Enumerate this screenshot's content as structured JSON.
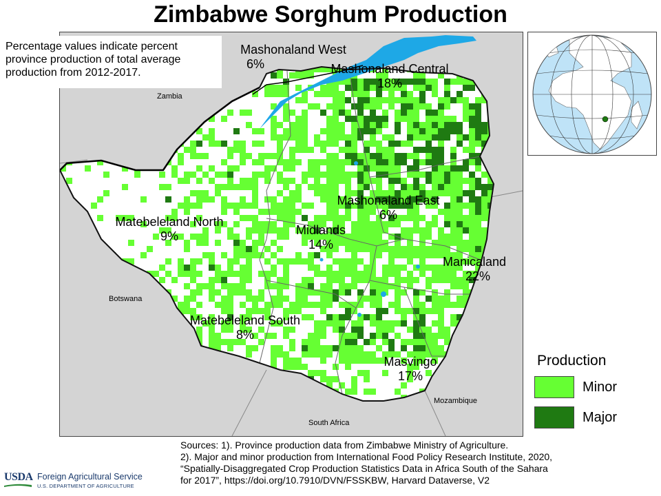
{
  "title": "Zimbabwe Sorghum Production",
  "note": "Percentage values indicate percent province production of total average production from 2012-2017.",
  "provinces": [
    {
      "name": "Mashonaland West",
      "share": "6%"
    },
    {
      "name": "Mashonaland Central",
      "share": "18%"
    },
    {
      "name": "Mashonaland East",
      "share": "6%"
    },
    {
      "name": "Matebeleland North",
      "share": "9%"
    },
    {
      "name": "Midlands",
      "share": "14%"
    },
    {
      "name": "Manicaland",
      "share": "22%"
    },
    {
      "name": "Matebeleland South",
      "share": "8%"
    },
    {
      "name": "Masvingo",
      "share": "17%"
    }
  ],
  "neighbors": [
    "Zambia",
    "Botswana",
    "Mozambique",
    "South Africa"
  ],
  "legend": {
    "title": "Production",
    "items": [
      {
        "label": "Minor",
        "color": "#66ff33"
      },
      {
        "label": "Major",
        "color": "#1f7a12"
      }
    ]
  },
  "colors": {
    "minor": "#66ff33",
    "major": "#1f7a12",
    "water": "#1ea8e6",
    "background_land": "#d4d4d4",
    "country_fill": "#ffffff"
  },
  "sources": {
    "line1": "Sources: 1). Province production data from Zimbabwe  Ministry of Agriculture.",
    "line2": "2). Major and minor production from International  Food Policy Research Institute,  2020,",
    "line3": "“Spatially-Disaggregated Crop Production Statistics Data in Africa South  of the Sahara",
    "line4": "for 2017”, https://doi.org/10.7910/DVN/FSSKBW, Harvard Dataverse, V2"
  },
  "footer": {
    "usda": "USDA",
    "agency": "Foreign Agricultural Service",
    "department": "U.S. DEPARTMENT OF AGRICULTURE"
  }
}
